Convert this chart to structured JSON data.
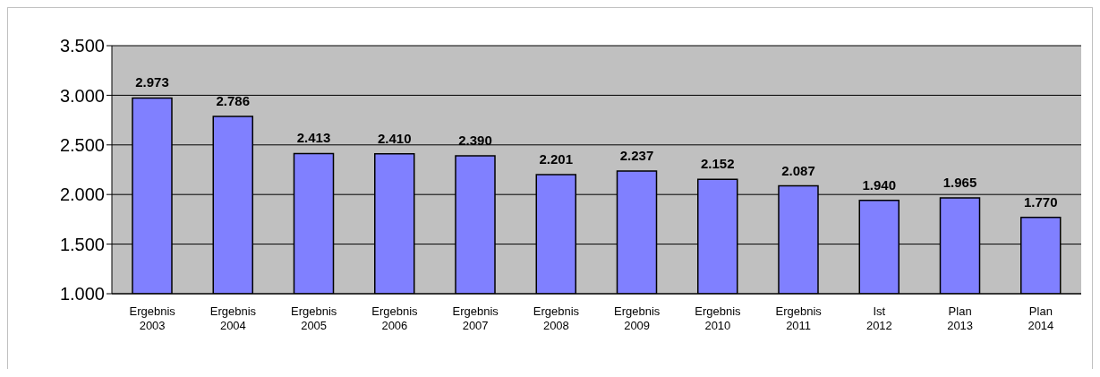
{
  "chart_data": {
    "type": "bar",
    "categories": [
      "Ergebnis 2003",
      "Ergebnis 2004",
      "Ergebnis 2005",
      "Ergebnis 2006",
      "Ergebnis 2007",
      "Ergebnis 2008",
      "Ergebnis 2009",
      "Ergebnis 2010",
      "Ergebnis 2011",
      "Ist 2012",
      "Plan 2013",
      "Plan 2014"
    ],
    "values": [
      2973,
      2786,
      2413,
      2410,
      2390,
      2201,
      2237,
      2152,
      2087,
      1940,
      1965,
      1770
    ],
    "value_labels": [
      "2.973",
      "2.786",
      "2.413",
      "2.410",
      "2.390",
      "2.201",
      "2.237",
      "2.152",
      "2.087",
      "1.940",
      "1.965",
      "1.770"
    ],
    "color": "#8080ff",
    "ylim": [
      1000,
      3500
    ],
    "yticks": [
      {
        "value": 1000,
        "label": "1.000"
      },
      {
        "value": 1500,
        "label": "1.500"
      },
      {
        "value": 2000,
        "label": "2.000"
      },
      {
        "value": 2500,
        "label": "2.500"
      },
      {
        "value": 3000,
        "label": "3.000"
      },
      {
        "value": 3500,
        "label": "3.500"
      }
    ],
    "grid": "y",
    "legend": false
  }
}
